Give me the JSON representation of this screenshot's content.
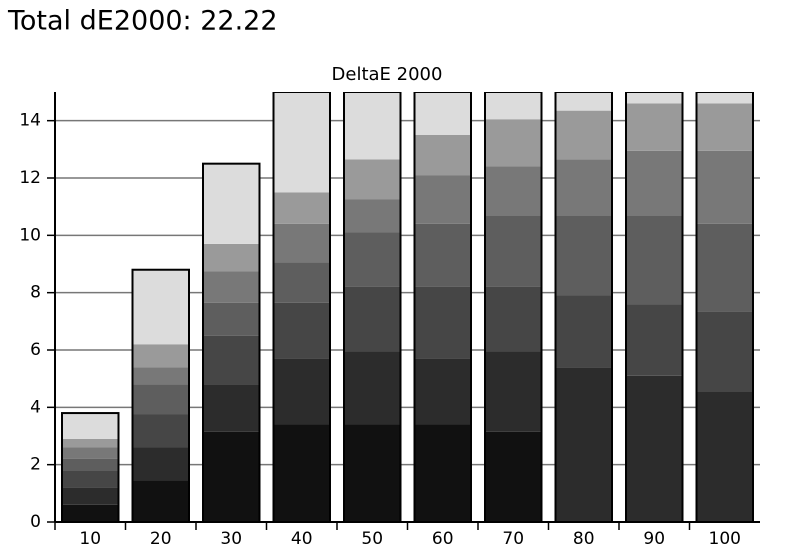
{
  "title": "Total dE2000: 22.22",
  "chart_data": {
    "type": "bar",
    "stacked": true,
    "title": "DeltaE 2000",
    "categories": [
      "10",
      "20",
      "30",
      "40",
      "50",
      "60",
      "70",
      "80",
      "90",
      "100"
    ],
    "series": [
      {
        "color": "#111111",
        "values": [
          0.6,
          1.45,
          3.15,
          3.4,
          3.4,
          3.4,
          3.15,
          0,
          0,
          0
        ]
      },
      {
        "color": "#2c2c2c",
        "values": [
          0.6,
          1.15,
          1.65,
          2.3,
          2.55,
          2.3,
          2.8,
          5.4,
          5.1,
          4.55
        ]
      },
      {
        "color": "#464646",
        "values": [
          0.6,
          1.15,
          1.7,
          1.95,
          2.25,
          2.5,
          2.25,
          2.5,
          2.5,
          2.8
        ]
      },
      {
        "color": "#5e5e5e",
        "values": [
          0.4,
          1.05,
          1.15,
          1.4,
          1.9,
          2.2,
          2.5,
          2.8,
          3.1,
          3.05
        ]
      },
      {
        "color": "#787878",
        "values": [
          0.4,
          0.6,
          1.1,
          1.35,
          1.15,
          1.7,
          1.7,
          1.95,
          2.25,
          2.55
        ]
      },
      {
        "color": "#9a9a9a",
        "values": [
          0.3,
          0.8,
          0.95,
          1.1,
          1.4,
          1.4,
          1.65,
          1.7,
          1.65,
          1.65
        ]
      },
      {
        "color": "#dcdcdc",
        "values": [
          0.9,
          2.6,
          2.8,
          3.5,
          2.35,
          1.5,
          0.95,
          0.65,
          0.4,
          0.4
        ]
      }
    ],
    "ylim": [
      0,
      15
    ],
    "yticks": [
      0,
      2,
      4,
      6,
      8,
      10,
      12,
      14
    ],
    "grid": true
  }
}
